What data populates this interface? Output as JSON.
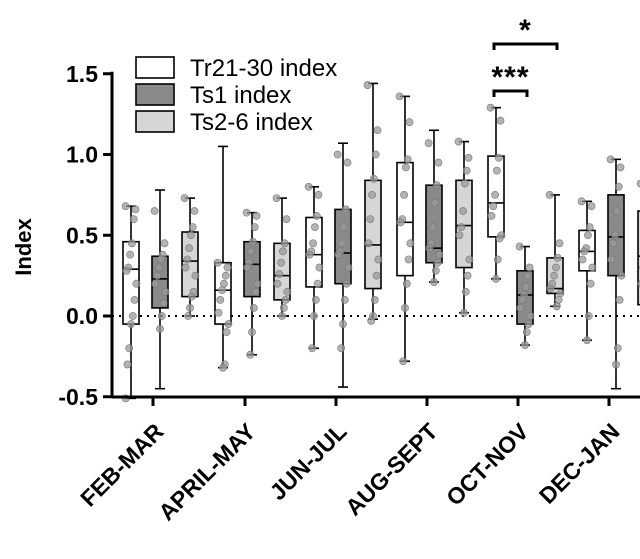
{
  "chart_data": {
    "type": "box",
    "ylabel": "Index",
    "ylim": [
      -0.6,
      1.6
    ],
    "yticks": [
      "1.5",
      "1.0",
      "0.5",
      "0.0",
      "-0.5"
    ],
    "ytick_values": [
      1.5,
      1.0,
      0.5,
      0.0,
      -0.5
    ],
    "zero_reference_line": "dotted",
    "legend_position": "top-left",
    "colors": {
      "Tr21-30 index": "#ffffff",
      "Ts1 index": "#8a8a8a",
      "Ts2-6 index": "#d6d6d6",
      "points": "#9a9a9a"
    },
    "categories": [
      "FEB-MAR",
      "APRIL-MAY",
      "JUN-JUL",
      "AUG-SEPT",
      "OCT-NOV",
      "DEC-JAN"
    ],
    "series": [
      {
        "name": "Tr21-30 index",
        "boxes": [
          {
            "min": -0.51,
            "q1": -0.05,
            "median": 0.29,
            "q3": 0.46,
            "max": 0.68,
            "points": [
              0.68,
              0.66,
              0.6,
              0.45,
              0.38,
              0.3,
              0.28,
              0.2,
              0.1,
              0.0,
              -0.05,
              -0.2,
              -0.3,
              -0.51
            ]
          },
          {
            "min": -0.32,
            "q1": -0.05,
            "median": 0.16,
            "q3": 0.33,
            "max": 1.05,
            "points": [
              0.33,
              0.3,
              0.25,
              0.2,
              0.16,
              0.1,
              0.02,
              -0.05,
              -0.1,
              -0.3,
              -0.32
            ]
          },
          {
            "min": -0.2,
            "q1": 0.18,
            "median": 0.38,
            "q3": 0.61,
            "max": 0.8,
            "points": [
              0.8,
              0.75,
              0.62,
              0.55,
              0.45,
              0.4,
              0.38,
              0.3,
              0.2,
              0.1,
              0.0,
              -0.2
            ]
          },
          {
            "min": -0.28,
            "q1": 0.25,
            "median": 0.58,
            "q3": 0.95,
            "max": 1.36,
            "points": [
              1.36,
              1.2,
              0.97,
              0.92,
              0.75,
              0.6,
              0.58,
              0.45,
              0.35,
              0.2,
              0.05,
              -0.28
            ]
          },
          {
            "min": 0.23,
            "q1": 0.49,
            "median": 0.7,
            "q3": 0.99,
            "max": 1.29,
            "points": [
              1.29,
              1.21,
              0.98,
              0.9,
              0.75,
              0.68,
              0.62,
              0.5,
              0.48,
              0.35,
              0.23
            ]
          },
          {
            "min": -0.15,
            "q1": 0.28,
            "median": 0.4,
            "q3": 0.53,
            "max": 0.71,
            "points": [
              0.71,
              0.68,
              0.55,
              0.5,
              0.42,
              0.4,
              0.35,
              0.3,
              0.2,
              0.0,
              -0.15
            ]
          }
        ]
      },
      {
        "name": "Ts1 index",
        "boxes": [
          {
            "min": -0.45,
            "q1": 0.05,
            "median": 0.23,
            "q3": 0.37,
            "max": 0.78,
            "points": [
              0.65,
              0.45,
              0.38,
              0.35,
              0.3,
              0.25,
              0.2,
              0.15,
              0.08,
              0.0,
              -0.08
            ]
          },
          {
            "min": -0.24,
            "q1": 0.12,
            "median": 0.32,
            "q3": 0.46,
            "max": 0.64,
            "points": [
              0.64,
              0.62,
              0.55,
              0.46,
              0.4,
              0.33,
              0.3,
              0.2,
              0.15,
              0.05,
              -0.1,
              -0.24
            ]
          },
          {
            "min": -0.44,
            "q1": 0.2,
            "median": 0.39,
            "q3": 0.66,
            "max": 1.07,
            "points": [
              1.0,
              0.95,
              0.66,
              0.55,
              0.45,
              0.4,
              0.38,
              0.3,
              0.2,
              0.1,
              -0.05,
              -0.2
            ]
          },
          {
            "min": 0.21,
            "q1": 0.33,
            "median": 0.42,
            "q3": 0.81,
            "max": 1.15,
            "points": [
              1.07,
              0.95,
              0.81,
              0.7,
              0.55,
              0.45,
              0.42,
              0.38,
              0.33,
              0.28,
              0.21
            ]
          },
          {
            "min": -0.18,
            "q1": -0.05,
            "median": 0.13,
            "q3": 0.28,
            "max": 0.43,
            "points": [
              0.43,
              0.3,
              0.25,
              0.18,
              0.13,
              0.1,
              0.05,
              0.0,
              -0.05,
              -0.1,
              -0.18
            ]
          },
          {
            "min": -0.45,
            "q1": 0.25,
            "median": 0.49,
            "q3": 0.75,
            "max": 0.97,
            "points": [
              0.97,
              0.92,
              0.8,
              0.65,
              0.5,
              0.45,
              0.35,
              0.25,
              0.1,
              -0.2,
              -0.3
            ]
          }
        ]
      },
      {
        "name": "Ts2-6 index",
        "boxes": [
          {
            "min": 0.0,
            "q1": 0.12,
            "median": 0.34,
            "q3": 0.52,
            "max": 0.73,
            "points": [
              0.73,
              0.65,
              0.55,
              0.5,
              0.42,
              0.35,
              0.3,
              0.25,
              0.15,
              0.12,
              0.05,
              0.0
            ]
          },
          {
            "min": 0.0,
            "q1": 0.1,
            "median": 0.25,
            "q3": 0.45,
            "max": 0.73,
            "points": [
              0.73,
              0.6,
              0.45,
              0.4,
              0.33,
              0.26,
              0.2,
              0.15,
              0.1,
              0.05,
              0.0
            ]
          },
          {
            "min": -0.02,
            "q1": 0.17,
            "median": 0.44,
            "q3": 0.84,
            "max": 1.44,
            "points": [
              1.43,
              1.15,
              1.0,
              0.85,
              0.75,
              0.6,
              0.45,
              0.35,
              0.25,
              0.1,
              0.0,
              -0.03
            ]
          },
          {
            "min": 0.02,
            "q1": 0.3,
            "median": 0.56,
            "q3": 0.84,
            "max": 1.08,
            "points": [
              1.08,
              0.98,
              0.9,
              0.82,
              0.65,
              0.55,
              0.5,
              0.35,
              0.25,
              0.15,
              0.02
            ]
          },
          {
            "min": 0.06,
            "q1": 0.14,
            "median": 0.17,
            "q3": 0.36,
            "max": 0.75,
            "points": [
              0.75,
              0.45,
              0.36,
              0.3,
              0.25,
              0.2,
              0.17,
              0.14,
              0.1,
              0.06
            ]
          },
          {
            "min": -0.22,
            "q1": 0.07,
            "median": 0.37,
            "q3": 0.65,
            "max": 0.82,
            "points": [
              0.82,
              0.78,
              0.65,
              0.55,
              0.4,
              0.3,
              0.2,
              0.07,
              -0.1,
              -0.22
            ]
          }
        ]
      }
    ],
    "annotations": [
      {
        "label": "*",
        "category": "OCT-NOV",
        "from_series": "Tr21-30 index",
        "to_series": "Ts2-6 index"
      },
      {
        "label": "***",
        "category": "OCT-NOV",
        "from_series": "Tr21-30 index",
        "to_series": "Ts1 index"
      }
    ]
  }
}
